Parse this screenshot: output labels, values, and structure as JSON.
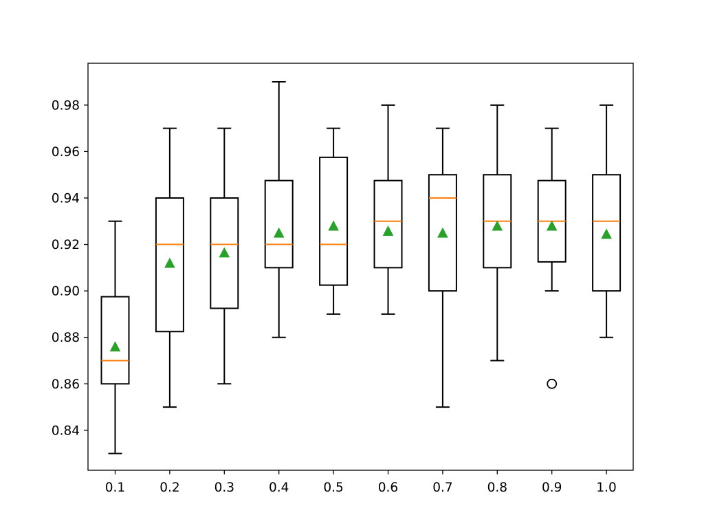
{
  "chart_data": {
    "type": "box",
    "title": "",
    "xlabel": "",
    "ylabel": "",
    "ylim": [
      0.8228,
      0.998
    ],
    "y_ticks": [
      0.84,
      0.86,
      0.88,
      0.9,
      0.92,
      0.94,
      0.96,
      0.98
    ],
    "y_tick_labels": [
      "0.84",
      "0.86",
      "0.88",
      "0.90",
      "0.92",
      "0.94",
      "0.96",
      "0.98"
    ],
    "categories": [
      "0.1",
      "0.2",
      "0.3",
      "0.4",
      "0.5",
      "0.6",
      "0.7",
      "0.8",
      "0.9",
      "1.0"
    ],
    "grid": false,
    "boxes": [
      {
        "category": "0.1",
        "whisker_low": 0.83,
        "q1": 0.86,
        "median": 0.87,
        "q3": 0.8975,
        "whisker_high": 0.93,
        "mean": 0.876,
        "outliers": []
      },
      {
        "category": "0.2",
        "whisker_low": 0.85,
        "q1": 0.8825,
        "median": 0.92,
        "q3": 0.94,
        "whisker_high": 0.97,
        "mean": 0.912,
        "outliers": []
      },
      {
        "category": "0.3",
        "whisker_low": 0.86,
        "q1": 0.8925,
        "median": 0.92,
        "q3": 0.94,
        "whisker_high": 0.97,
        "mean": 0.9165,
        "outliers": []
      },
      {
        "category": "0.4",
        "whisker_low": 0.88,
        "q1": 0.91,
        "median": 0.92,
        "q3": 0.9475,
        "whisker_high": 0.99,
        "mean": 0.925,
        "outliers": []
      },
      {
        "category": "0.5",
        "whisker_low": 0.89,
        "q1": 0.9025,
        "median": 0.92,
        "q3": 0.9575,
        "whisker_high": 0.97,
        "mean": 0.928,
        "outliers": []
      },
      {
        "category": "0.6",
        "whisker_low": 0.89,
        "q1": 0.91,
        "median": 0.93,
        "q3": 0.9475,
        "whisker_high": 0.98,
        "mean": 0.9258,
        "outliers": []
      },
      {
        "category": "0.7",
        "whisker_low": 0.85,
        "q1": 0.9,
        "median": 0.94,
        "q3": 0.95,
        "whisker_high": 0.97,
        "mean": 0.925,
        "outliers": []
      },
      {
        "category": "0.8",
        "whisker_low": 0.87,
        "q1": 0.91,
        "median": 0.93,
        "q3": 0.95,
        "whisker_high": 0.98,
        "mean": 0.928,
        "outliers": []
      },
      {
        "category": "0.9",
        "whisker_low": 0.9,
        "q1": 0.9125,
        "median": 0.93,
        "q3": 0.9475,
        "whisker_high": 0.97,
        "mean": 0.928,
        "outliers": [
          0.86
        ]
      },
      {
        "category": "1.0",
        "whisker_low": 0.88,
        "q1": 0.9,
        "median": 0.93,
        "q3": 0.95,
        "whisker_high": 0.98,
        "mean": 0.9245,
        "outliers": []
      }
    ],
    "colors": {
      "box": "#000000",
      "median": "#ff7f0e",
      "mean_marker": "#2ca02c",
      "outlier": "#000000",
      "background": "#ffffff"
    }
  }
}
